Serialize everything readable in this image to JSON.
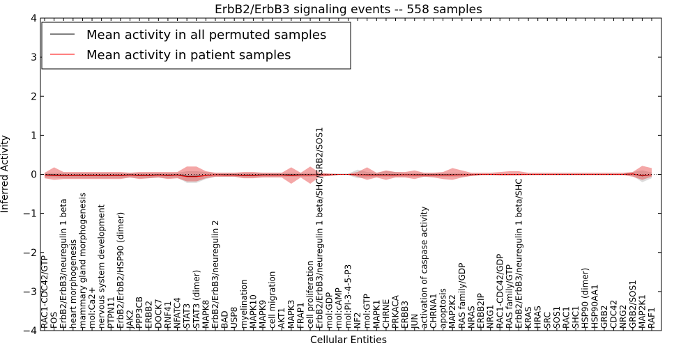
{
  "chart_data": {
    "type": "line",
    "title": "ErbB2/ErbB3 signaling events -- 558 samples",
    "xlabel": "Cellular Entities",
    "ylabel": "Inferred Activity",
    "ylim": [
      -4,
      4
    ],
    "yticks": [
      "4",
      "3",
      "2",
      "1",
      "0",
      "−1",
      "−2",
      "−3",
      "−4"
    ],
    "grid": false,
    "legend_position": "top-left",
    "categories": [
      "RAC1-CDC42/GTP",
      "FOS",
      "ErbB2/ErbB3/neuregulin 1 beta",
      "heart morphogenesis",
      "mammary gland morphogenesis",
      "mol:Ca2+",
      "nervous system development",
      "PTPN11",
      "ErbB2/ErbB2/HSP90 (dimer)",
      "JAK2",
      "PPP3CB",
      "ERBB2",
      "DOCK7",
      "RNF41",
      "NFATC4",
      "STAT3",
      "STAT3 (dimer)",
      "MAPK8",
      "ErbB2/ErbB3/neuregulin 2",
      "BAD",
      "USP8",
      "myelination",
      "MAPK10",
      "MAPK9",
      "cell migration",
      "AKT1",
      "MAPK3",
      "FRAP1",
      "cell proliferation",
      "ErbB2/ErbB3/neuregulin 1 beta/SHC/GRB2/SOS1",
      "mol:GDP",
      "mol:cAMP",
      "mol:PI-3-4-5-P3",
      "NF2",
      "mol:GTP",
      "MAPK1",
      "CHRNE",
      "PRKACA",
      "ERBB3",
      "JUN",
      "activation of caspase activity",
      "CHRNA1",
      "apoptosis",
      "MAP2K2",
      "RAS family/GDP",
      "NRAS",
      "ERBB2IP",
      "NRG1",
      "RAC1-CDC42/GDP",
      "RAS family/GTP",
      "ErbB2/ErbB3/neuregulin 1 beta/SHC",
      "KRAS",
      "HRAS",
      "SRC",
      "SOS1",
      "RAC1",
      "SHC1",
      "HSP90 (dimer)",
      "HSP90AA1",
      "GRB2",
      "CDC42",
      "NRG2",
      "GRB2/SOS1",
      "MAP2K1",
      "RAF1"
    ],
    "series": [
      {
        "name": "Mean activity in all permuted samples",
        "color": "#000000",
        "values": [
          -0.01,
          -0.01,
          -0.02,
          -0.02,
          -0.02,
          -0.02,
          -0.02,
          -0.02,
          -0.02,
          -0.01,
          -0.02,
          -0.02,
          -0.01,
          -0.02,
          -0.01,
          -0.05,
          -0.05,
          -0.03,
          -0.01,
          -0.01,
          -0.01,
          -0.02,
          -0.02,
          -0.01,
          -0.01,
          -0.01,
          -0.01,
          -0.01,
          -0.01,
          -0.01,
          -0.01,
          0.0,
          0.0,
          -0.01,
          -0.01,
          -0.01,
          -0.01,
          -0.01,
          -0.01,
          -0.01,
          -0.01,
          -0.01,
          -0.01,
          -0.01,
          -0.01,
          -0.01,
          0.0,
          0.0,
          0.0,
          0.0,
          0.0,
          0.0,
          0.0,
          0.0,
          0.0,
          0.0,
          0.0,
          0.0,
          0.0,
          0.0,
          0.0,
          0.0,
          0.01,
          -0.04,
          -0.01
        ],
        "band_low": [
          -0.08,
          -0.08,
          -0.1,
          -0.1,
          -0.1,
          -0.1,
          -0.1,
          -0.1,
          -0.1,
          -0.08,
          -0.1,
          -0.1,
          -0.08,
          -0.1,
          -0.08,
          -0.22,
          -0.22,
          -0.12,
          -0.06,
          -0.06,
          -0.06,
          -0.08,
          -0.08,
          -0.06,
          -0.06,
          -0.06,
          -0.06,
          -0.06,
          -0.06,
          -0.04,
          -0.04,
          -0.02,
          -0.02,
          -0.1,
          -0.08,
          -0.06,
          -0.06,
          -0.06,
          -0.06,
          -0.06,
          -0.06,
          -0.06,
          -0.06,
          -0.06,
          -0.06,
          -0.04,
          -0.02,
          -0.02,
          -0.02,
          -0.02,
          -0.02,
          -0.02,
          -0.02,
          -0.02,
          -0.02,
          -0.02,
          -0.02,
          -0.02,
          -0.02,
          -0.02,
          -0.02,
          -0.02,
          -0.04,
          -0.2,
          -0.1
        ],
        "band_high": [
          0.04,
          0.04,
          0.04,
          0.04,
          0.04,
          0.04,
          0.04,
          0.04,
          0.04,
          0.04,
          0.04,
          0.04,
          0.04,
          0.04,
          0.04,
          0.08,
          0.08,
          0.06,
          0.04,
          0.04,
          0.04,
          0.04,
          0.04,
          0.04,
          0.04,
          0.04,
          0.04,
          0.04,
          0.04,
          0.02,
          0.02,
          0.02,
          0.02,
          0.12,
          0.06,
          0.04,
          0.08,
          0.06,
          0.04,
          0.04,
          0.04,
          0.04,
          0.04,
          0.04,
          0.04,
          0.02,
          0.02,
          0.02,
          0.02,
          0.02,
          0.02,
          0.02,
          0.02,
          0.02,
          0.02,
          0.02,
          0.02,
          0.02,
          0.02,
          0.02,
          0.02,
          0.02,
          0.06,
          0.1,
          0.05
        ]
      },
      {
        "name": "Mean activity in patient samples",
        "color": "#ff0000",
        "values": [
          -0.02,
          -0.03,
          -0.03,
          -0.03,
          -0.03,
          -0.03,
          -0.03,
          -0.03,
          -0.03,
          -0.02,
          -0.03,
          -0.03,
          -0.02,
          -0.03,
          -0.02,
          -0.06,
          -0.06,
          -0.03,
          -0.01,
          -0.02,
          -0.02,
          -0.03,
          -0.03,
          -0.02,
          -0.02,
          -0.02,
          -0.03,
          -0.02,
          -0.02,
          -0.01,
          -0.01,
          0.0,
          0.0,
          -0.01,
          -0.02,
          -0.02,
          -0.02,
          -0.02,
          -0.01,
          -0.02,
          -0.02,
          -0.02,
          -0.02,
          -0.02,
          -0.01,
          -0.01,
          0.0,
          0.0,
          0.0,
          0.0,
          0.0,
          0.0,
          0.0,
          0.0,
          0.0,
          0.0,
          0.0,
          0.0,
          0.0,
          0.0,
          0.0,
          0.0,
          0.01,
          -0.03,
          -0.01
        ],
        "band_low": [
          -0.1,
          -0.14,
          -0.12,
          -0.12,
          -0.12,
          -0.12,
          -0.12,
          -0.12,
          -0.12,
          -0.08,
          -0.12,
          -0.1,
          -0.08,
          -0.12,
          -0.1,
          -0.18,
          -0.18,
          -0.1,
          -0.06,
          -0.06,
          -0.06,
          -0.1,
          -0.1,
          -0.08,
          -0.08,
          -0.08,
          -0.24,
          -0.08,
          -0.24,
          -0.06,
          -0.04,
          -0.01,
          -0.01,
          -0.06,
          -0.14,
          -0.08,
          -0.14,
          -0.08,
          -0.08,
          -0.12,
          -0.06,
          -0.08,
          -0.12,
          -0.14,
          -0.08,
          -0.04,
          -0.02,
          -0.02,
          -0.03,
          -0.03,
          -0.03,
          -0.02,
          -0.02,
          -0.02,
          -0.02,
          -0.02,
          -0.02,
          -0.02,
          -0.02,
          -0.02,
          -0.02,
          -0.02,
          -0.06,
          -0.14,
          -0.06
        ],
        "band_high": [
          0.04,
          0.18,
          0.06,
          0.06,
          0.06,
          0.06,
          0.06,
          0.06,
          0.06,
          0.04,
          0.06,
          0.06,
          0.06,
          0.06,
          0.06,
          0.2,
          0.2,
          0.08,
          0.04,
          0.04,
          0.04,
          0.06,
          0.06,
          0.04,
          0.04,
          0.04,
          0.18,
          0.04,
          0.2,
          0.04,
          0.02,
          0.01,
          0.01,
          0.06,
          0.18,
          0.04,
          0.1,
          0.06,
          0.06,
          0.1,
          0.04,
          0.04,
          0.06,
          0.16,
          0.1,
          0.04,
          0.04,
          0.04,
          0.06,
          0.08,
          0.08,
          0.04,
          0.04,
          0.04,
          0.04,
          0.04,
          0.04,
          0.04,
          0.04,
          0.04,
          0.04,
          0.04,
          0.06,
          0.22,
          0.16
        ]
      }
    ]
  }
}
